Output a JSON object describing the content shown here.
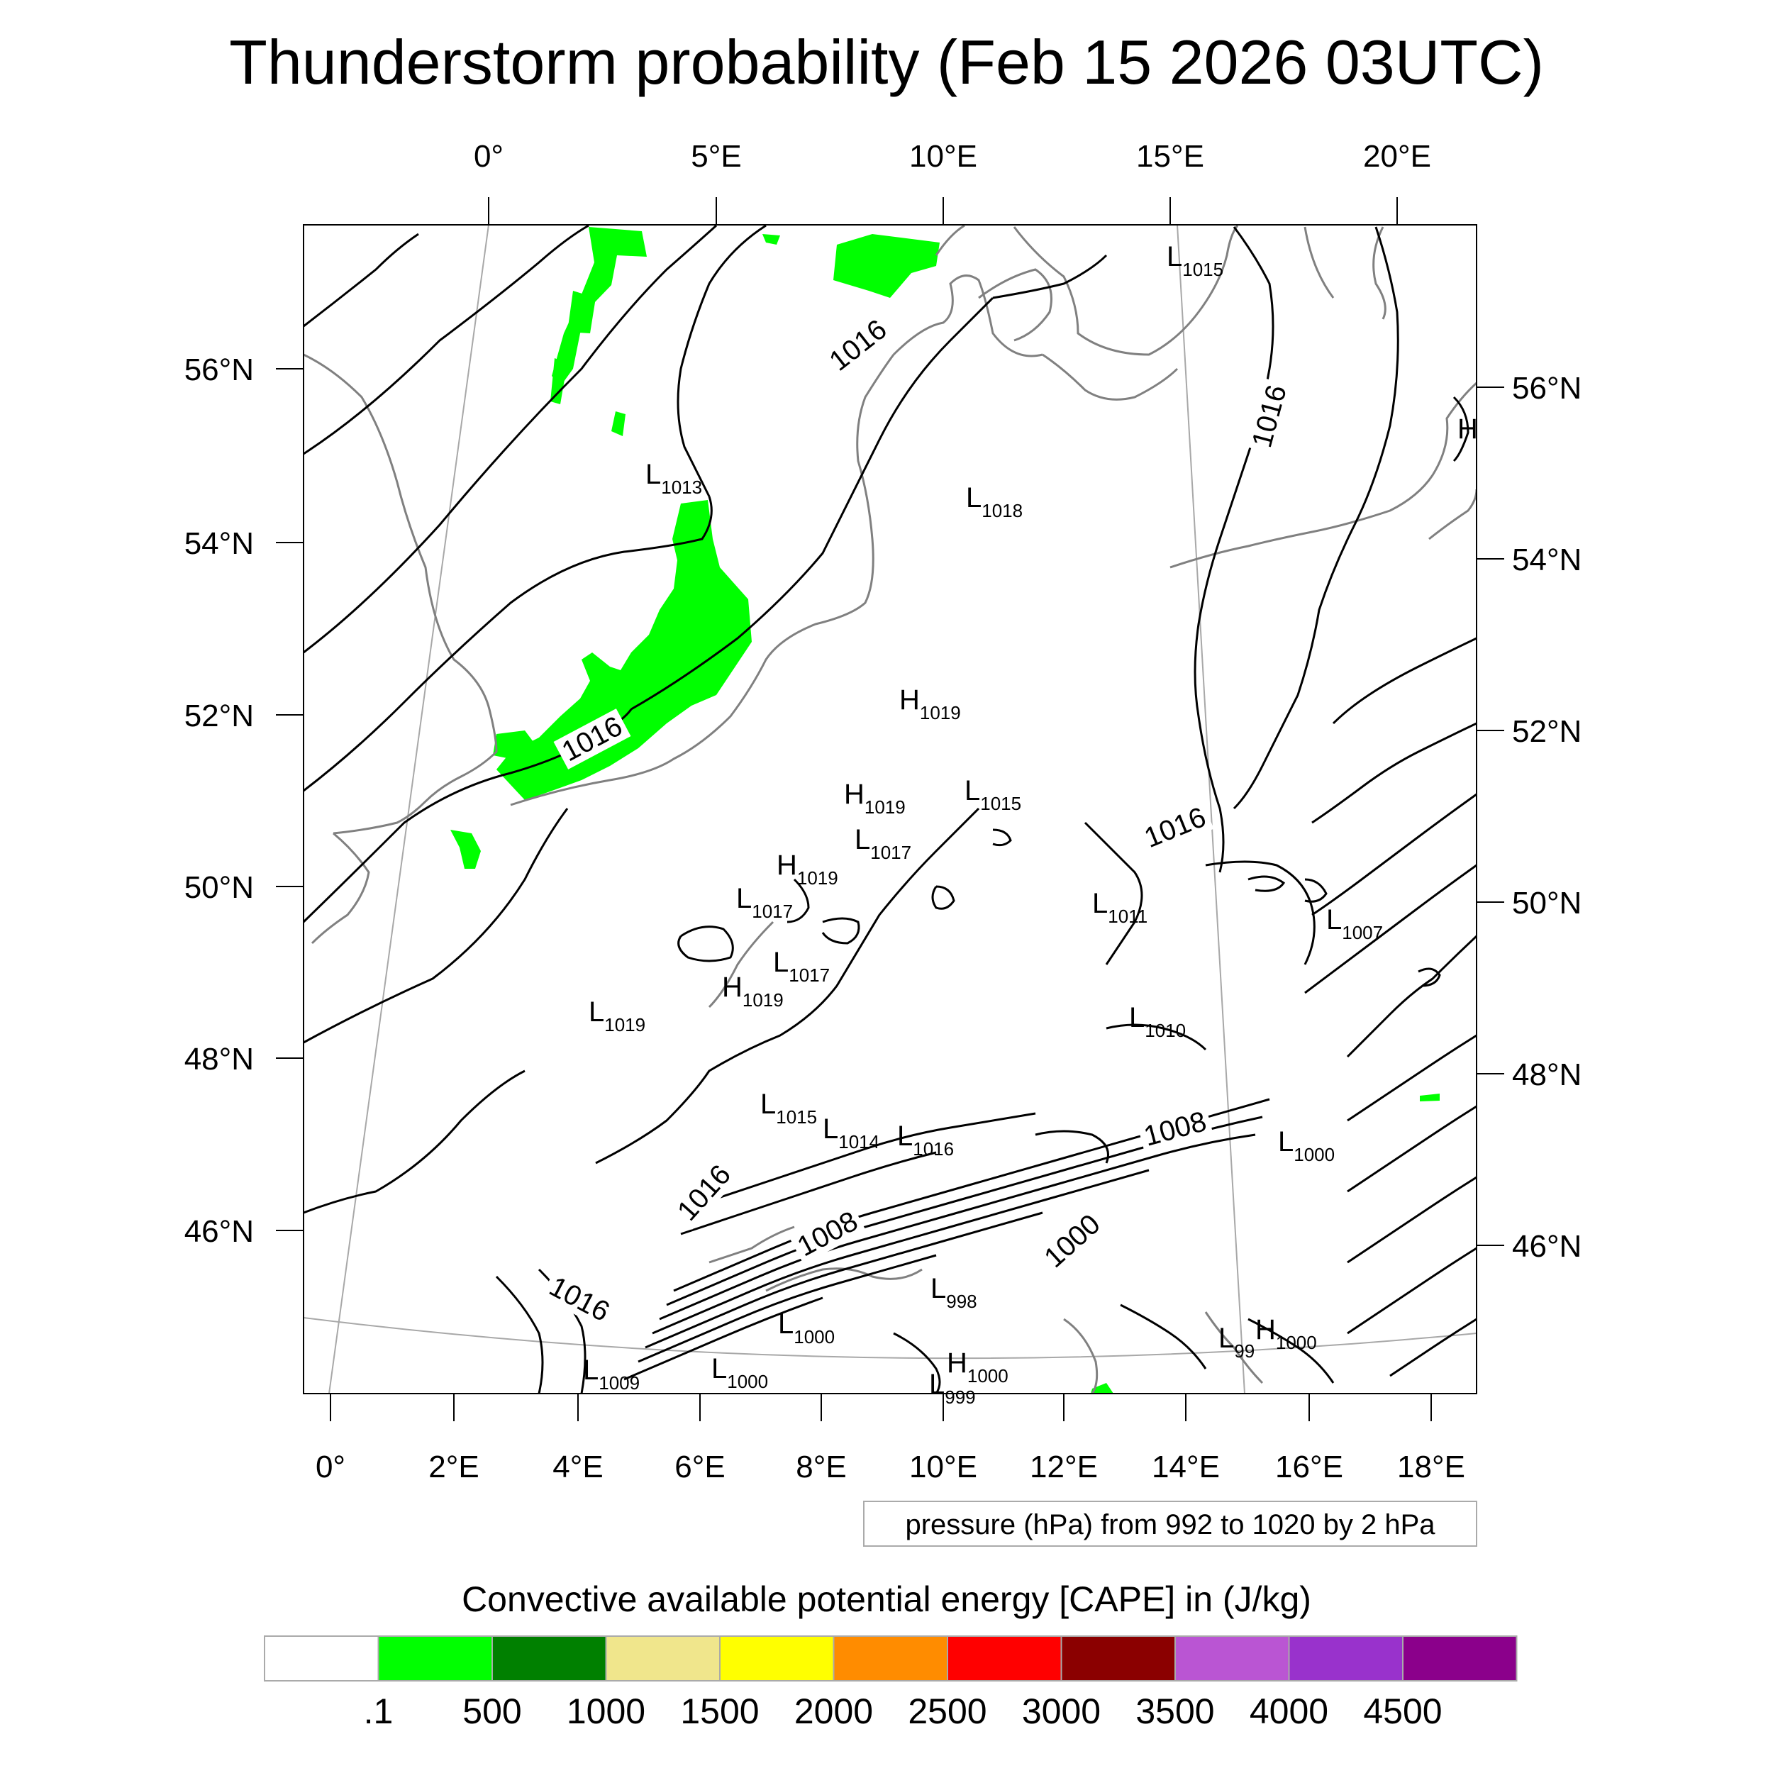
{
  "title": "Thunderstorm probability (Feb 15 2026 03UTC)",
  "map": {
    "top_lon_labels": [
      "0°",
      "5°E",
      "10°E",
      "15°E",
      "20°E"
    ],
    "bottom_lon_labels": [
      "0°",
      "2°E",
      "4°E",
      "6°E",
      "8°E",
      "10°E",
      "12°E",
      "14°E",
      "16°E",
      "18°E"
    ],
    "left_lat_labels": [
      "56°N",
      "54°N",
      "52°N",
      "50°N",
      "48°N",
      "46°N"
    ],
    "right_lat_labels": [
      "56°N",
      "54°N",
      "52°N",
      "50°N",
      "48°N",
      "46°N"
    ],
    "pressure_centers": [
      {
        "type": "L",
        "value": "1015"
      },
      {
        "type": "L",
        "value": "1013"
      },
      {
        "type": "L",
        "value": "1018"
      },
      {
        "type": "H",
        "value": ""
      },
      {
        "type": "H",
        "value": "1019"
      },
      {
        "type": "H",
        "value": "1019"
      },
      {
        "type": "L",
        "value": "1015"
      },
      {
        "type": "L",
        "value": "1017"
      },
      {
        "type": "H",
        "value": "1019"
      },
      {
        "type": "L",
        "value": "1017"
      },
      {
        "type": "L",
        "value": "1017"
      },
      {
        "type": "H",
        "value": "1019"
      },
      {
        "type": "L",
        "value": "1019"
      },
      {
        "type": "L",
        "value": "1011"
      },
      {
        "type": "L",
        "value": "1007"
      },
      {
        "type": "L",
        "value": "1010"
      },
      {
        "type": "L",
        "value": "1015"
      },
      {
        "type": "L",
        "value": "1014"
      },
      {
        "type": "L",
        "value": "1016"
      },
      {
        "type": "L",
        "value": "1000"
      },
      {
        "type": "L",
        "value": "998"
      },
      {
        "type": "L",
        "value": "1000"
      },
      {
        "type": "L",
        "value": "1009"
      },
      {
        "type": "L",
        "value": "1000"
      },
      {
        "type": "H",
        "value": "1000"
      },
      {
        "type": "L",
        "value": "999"
      },
      {
        "type": "L",
        "value": "99"
      },
      {
        "type": "H",
        "value": "1000"
      }
    ],
    "contour_labels": [
      "1016",
      "1016",
      "1016",
      "1016",
      "1016",
      "1016",
      "1008",
      "1008",
      "1000"
    ],
    "pressure_note": "pressure (hPa) from 992 to 1020 by 2 hPa"
  },
  "colorbar": {
    "title": "Convective available potential energy [CAPE] in (J/kg)",
    "colors": [
      "#ffffff",
      "#00ff00",
      "#008000",
      "#f0e68c",
      "#ffff00",
      "#ff8c00",
      "#ff0000",
      "#8b0000",
      "#ba55d3",
      "#9932cc",
      "#8b008b"
    ],
    "labels": [
      ".1",
      "500",
      "1000",
      "1500",
      "2000",
      "2500",
      "3000",
      "3500",
      "4000",
      "4500"
    ]
  }
}
